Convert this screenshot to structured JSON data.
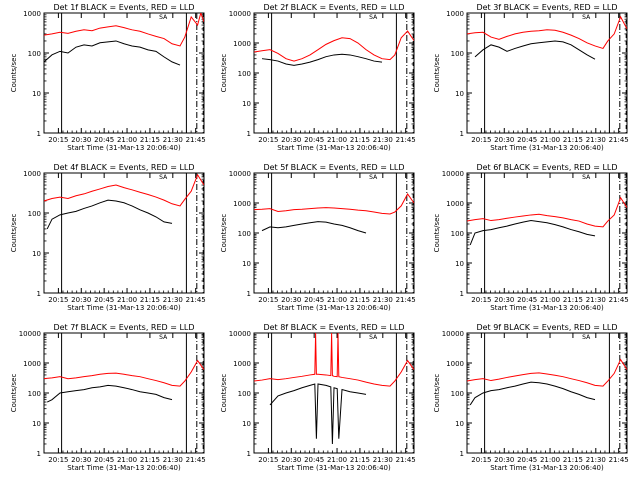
{
  "figure": {
    "background": "#ffffff",
    "axis_color": "#000000"
  },
  "colors": {
    "events": "#000000",
    "lld": "#ff0000"
  },
  "chart_data": [
    {
      "type": "line",
      "title": "Det 1f BLACK = Events, RED = LLD",
      "xlabel": "Start Time (31-Mar-13 20:06:40)",
      "ylabel": "Counts/sec",
      "yscale": "log",
      "ylim": [
        1,
        1000
      ],
      "ytick_labels": [
        "1",
        "10",
        "100",
        "1000"
      ],
      "xtick_labels": [
        "20:15",
        "20:30",
        "20:45",
        "21:00",
        "21:15",
        "21:30",
        "21:45"
      ],
      "marker_label": "SA",
      "series": [
        {
          "name": "Events",
          "x": [
            0,
            0.05,
            0.1,
            0.15,
            0.2,
            0.25,
            0.3,
            0.35,
            0.4,
            0.45,
            0.5,
            0.55,
            0.6,
            0.65,
            0.7,
            0.75,
            0.8,
            0.85
          ],
          "y": [
            60,
            90,
            110,
            100,
            140,
            160,
            150,
            180,
            190,
            200,
            170,
            150,
            140,
            120,
            110,
            80,
            60,
            50
          ]
        },
        {
          "name": "LLD",
          "x": [
            0,
            0.05,
            0.1,
            0.15,
            0.2,
            0.25,
            0.3,
            0.35,
            0.4,
            0.45,
            0.5,
            0.55,
            0.6,
            0.65,
            0.7,
            0.75,
            0.8,
            0.85,
            0.88,
            0.92,
            0.96,
            0.98,
            1.0
          ],
          "y": [
            280,
            300,
            330,
            310,
            350,
            380,
            360,
            420,
            450,
            480,
            430,
            380,
            350,
            300,
            260,
            230,
            170,
            150,
            250,
            800,
            500,
            1000,
            600
          ]
        }
      ]
    },
    {
      "type": "line",
      "title": "Det 2f BLACK = Events, RED = LLD",
      "xlabel": "Start Time (31-Mar-13 20:06:40)",
      "ylabel": "Counts/sec",
      "yscale": "log",
      "ylim": [
        1,
        10000
      ],
      "ytick_labels": [
        "1",
        "10",
        "100",
        "1000",
        "10000"
      ],
      "xtick_labels": [
        "20:15",
        "20:30",
        "20:45",
        "21:00",
        "21:15",
        "21:30",
        "21:45"
      ],
      "marker_label": "SA",
      "series": [
        {
          "name": "Events",
          "x": [
            0.05,
            0.1,
            0.15,
            0.2,
            0.25,
            0.3,
            0.35,
            0.4,
            0.45,
            0.5,
            0.55,
            0.6,
            0.65,
            0.7,
            0.75,
            0.8
          ],
          "y": [
            300,
            280,
            250,
            200,
            180,
            200,
            230,
            280,
            350,
            400,
            420,
            400,
            350,
            300,
            250,
            230
          ]
        },
        {
          "name": "LLD",
          "x": [
            0,
            0.05,
            0.1,
            0.15,
            0.2,
            0.25,
            0.3,
            0.35,
            0.4,
            0.45,
            0.5,
            0.55,
            0.6,
            0.65,
            0.7,
            0.75,
            0.8,
            0.85,
            0.88,
            0.92,
            0.96,
            1.0
          ],
          "y": [
            500,
            550,
            600,
            450,
            300,
            250,
            300,
            400,
            600,
            900,
            1200,
            1500,
            1400,
            1000,
            600,
            400,
            300,
            280,
            400,
            1500,
            2500,
            1200
          ]
        }
      ]
    },
    {
      "type": "line",
      "title": "Det 3f BLACK = Events, RED = LLD",
      "xlabel": "Start Time (31-Mar-13 20:06:40)",
      "ylabel": "Counts/sec",
      "yscale": "log",
      "ylim": [
        1,
        1000
      ],
      "ytick_labels": [
        "1",
        "10",
        "100",
        "1000"
      ],
      "xtick_labels": [
        "20:15",
        "20:30",
        "20:45",
        "21:00",
        "21:15",
        "21:30",
        "21:45"
      ],
      "marker_label": "SA",
      "series": [
        {
          "name": "Events",
          "x": [
            0.05,
            0.1,
            0.15,
            0.2,
            0.25,
            0.3,
            0.35,
            0.4,
            0.45,
            0.5,
            0.55,
            0.6,
            0.65,
            0.7,
            0.75,
            0.8
          ],
          "y": [
            80,
            120,
            160,
            140,
            110,
            130,
            150,
            170,
            180,
            190,
            200,
            190,
            160,
            120,
            90,
            70
          ]
        },
        {
          "name": "LLD",
          "x": [
            0,
            0.05,
            0.1,
            0.15,
            0.2,
            0.25,
            0.3,
            0.35,
            0.4,
            0.45,
            0.5,
            0.55,
            0.6,
            0.65,
            0.7,
            0.75,
            0.8,
            0.85,
            0.88,
            0.92,
            0.96,
            1.0
          ],
          "y": [
            300,
            320,
            330,
            250,
            220,
            260,
            300,
            330,
            350,
            360,
            380,
            370,
            330,
            280,
            230,
            180,
            150,
            130,
            200,
            300,
            800,
            400
          ]
        }
      ]
    },
    {
      "type": "line",
      "title": "Det 4f BLACK = Events, RED = LLD",
      "xlabel": "Start Time (31-Mar-13 20:06:40)",
      "ylabel": "Counts/sec",
      "yscale": "log",
      "ylim": [
        1,
        1000
      ],
      "ytick_labels": [
        "1",
        "10",
        "100",
        "1000"
      ],
      "xtick_labels": [
        "20:15",
        "20:30",
        "20:45",
        "21:00",
        "21:15",
        "21:30",
        "21:45"
      ],
      "marker_label": "SA",
      "series": [
        {
          "name": "Events",
          "x": [
            0.02,
            0.05,
            0.1,
            0.15,
            0.2,
            0.25,
            0.3,
            0.35,
            0.4,
            0.45,
            0.5,
            0.55,
            0.6,
            0.65,
            0.7,
            0.75,
            0.8
          ],
          "y": [
            40,
            70,
            90,
            100,
            110,
            130,
            150,
            180,
            210,
            200,
            180,
            150,
            120,
            100,
            80,
            60,
            55
          ]
        },
        {
          "name": "LLD",
          "x": [
            0,
            0.05,
            0.1,
            0.15,
            0.2,
            0.25,
            0.3,
            0.35,
            0.4,
            0.45,
            0.5,
            0.55,
            0.6,
            0.65,
            0.7,
            0.75,
            0.8,
            0.85,
            0.88,
            0.92,
            0.96,
            1.0
          ],
          "y": [
            200,
            230,
            250,
            230,
            270,
            300,
            350,
            400,
            460,
            500,
            430,
            380,
            330,
            290,
            250,
            210,
            170,
            150,
            220,
            350,
            900,
            500
          ]
        }
      ]
    },
    {
      "type": "line",
      "title": "Det 5f BLACK = Events, RED = LLD",
      "xlabel": "Start Time (31-Mar-13 20:06:40)",
      "ylabel": "Counts/sec",
      "yscale": "log",
      "ylim": [
        1,
        10000
      ],
      "ytick_labels": [
        "1",
        "10",
        "100",
        "1000",
        "10000"
      ],
      "xtick_labels": [
        "20:15",
        "20:30",
        "20:45",
        "21:00",
        "21:15",
        "21:30",
        "21:45"
      ],
      "marker_label": "SA",
      "series": [
        {
          "name": "Events",
          "x": [
            0.05,
            0.1,
            0.15,
            0.2,
            0.25,
            0.3,
            0.35,
            0.4,
            0.45,
            0.5,
            0.55,
            0.6,
            0.65,
            0.7
          ],
          "y": [
            120,
            160,
            150,
            160,
            180,
            200,
            220,
            240,
            230,
            200,
            180,
            150,
            120,
            100
          ]
        },
        {
          "name": "LLD",
          "x": [
            0,
            0.05,
            0.1,
            0.15,
            0.2,
            0.25,
            0.3,
            0.35,
            0.4,
            0.45,
            0.5,
            0.55,
            0.6,
            0.65,
            0.7,
            0.75,
            0.8,
            0.85,
            0.88,
            0.92,
            0.96,
            1.0
          ],
          "y": [
            600,
            620,
            650,
            520,
            550,
            600,
            620,
            650,
            680,
            700,
            680,
            650,
            620,
            580,
            550,
            500,
            450,
            430,
            500,
            800,
            2000,
            1000
          ]
        }
      ]
    },
    {
      "type": "line",
      "title": "Det 6f BLACK = Events, RED = LLD",
      "xlabel": "Start Time (31-Mar-13 20:06:40)",
      "ylabel": "Counts/sec",
      "yscale": "log",
      "ylim": [
        1,
        10000
      ],
      "ytick_labels": [
        "1",
        "10",
        "100",
        "1000",
        "10000"
      ],
      "xtick_labels": [
        "20:15",
        "20:30",
        "20:45",
        "21:00",
        "21:15",
        "21:30",
        "21:45"
      ],
      "marker_label": "SA",
      "series": [
        {
          "name": "Events",
          "x": [
            0.02,
            0.05,
            0.1,
            0.15,
            0.2,
            0.25,
            0.3,
            0.35,
            0.4,
            0.45,
            0.5,
            0.55,
            0.6,
            0.65,
            0.7,
            0.75,
            0.8
          ],
          "y": [
            40,
            100,
            120,
            130,
            150,
            170,
            200,
            230,
            260,
            240,
            220,
            190,
            160,
            130,
            110,
            90,
            80
          ]
        },
        {
          "name": "LLD",
          "x": [
            0,
            0.05,
            0.1,
            0.15,
            0.2,
            0.25,
            0.3,
            0.35,
            0.4,
            0.45,
            0.5,
            0.55,
            0.6,
            0.65,
            0.7,
            0.75,
            0.8,
            0.85,
            0.88,
            0.92,
            0.96,
            1.0
          ],
          "y": [
            250,
            280,
            300,
            260,
            280,
            310,
            340,
            370,
            400,
            420,
            380,
            350,
            320,
            280,
            250,
            200,
            170,
            160,
            250,
            400,
            1500,
            700
          ]
        }
      ]
    },
    {
      "type": "line",
      "title": "Det 7f BLACK = Events, RED = LLD",
      "xlabel": "Start Time (31-Mar-13 20:06:40)",
      "ylabel": "Counts/sec",
      "yscale": "log",
      "ylim": [
        1,
        10000
      ],
      "ytick_labels": [
        "1",
        "10",
        "100",
        "1000",
        "10000"
      ],
      "xtick_labels": [
        "20:15",
        "20:30",
        "20:45",
        "21:00",
        "21:15",
        "21:30",
        "21:45"
      ],
      "marker_label": "SA",
      "series": [
        {
          "name": "Events",
          "x": [
            0.02,
            0.05,
            0.1,
            0.15,
            0.2,
            0.25,
            0.3,
            0.35,
            0.4,
            0.45,
            0.5,
            0.55,
            0.6,
            0.65,
            0.7,
            0.75,
            0.8
          ],
          "y": [
            50,
            60,
            100,
            110,
            120,
            130,
            150,
            160,
            180,
            170,
            150,
            130,
            110,
            100,
            90,
            70,
            60
          ]
        },
        {
          "name": "LLD",
          "x": [
            0,
            0.05,
            0.1,
            0.15,
            0.2,
            0.25,
            0.3,
            0.35,
            0.4,
            0.45,
            0.5,
            0.55,
            0.6,
            0.65,
            0.7,
            0.75,
            0.8,
            0.85,
            0.88,
            0.92,
            0.96,
            1.0
          ],
          "y": [
            300,
            320,
            350,
            300,
            320,
            350,
            380,
            420,
            450,
            460,
            420,
            380,
            350,
            300,
            260,
            220,
            180,
            170,
            250,
            500,
            1200,
            600
          ]
        }
      ]
    },
    {
      "type": "line",
      "title": "Det 8f BLACK = Events, RED = LLD",
      "xlabel": "Start Time (31-Mar-13 20:06:40)",
      "ylabel": "Counts/sec",
      "yscale": "log",
      "ylim": [
        1,
        10000
      ],
      "ytick_labels": [
        "1",
        "10",
        "100",
        "1000",
        "10000"
      ],
      "xtick_labels": [
        "20:15",
        "20:30",
        "20:45",
        "21:00",
        "21:15",
        "21:30",
        "21:45"
      ],
      "marker_label": "SA",
      "series": [
        {
          "name": "Events",
          "x": [
            0.1,
            0.15,
            0.2,
            0.25,
            0.3,
            0.35,
            0.38,
            0.39,
            0.4,
            0.45,
            0.48,
            0.49,
            0.5,
            0.52,
            0.53,
            0.55,
            0.6,
            0.65,
            0.7
          ],
          "y": [
            40,
            80,
            100,
            120,
            150,
            180,
            200,
            3,
            200,
            180,
            160,
            2,
            150,
            140,
            3,
            130,
            110,
            100,
            90
          ]
        },
        {
          "name": "LLD",
          "x": [
            0,
            0.05,
            0.1,
            0.15,
            0.2,
            0.25,
            0.3,
            0.35,
            0.38,
            0.385,
            0.39,
            0.4,
            0.45,
            0.48,
            0.485,
            0.49,
            0.5,
            0.52,
            0.525,
            0.53,
            0.55,
            0.6,
            0.65,
            0.7,
            0.75,
            0.8,
            0.85,
            0.88,
            0.92,
            0.96,
            1.0
          ],
          "y": [
            250,
            270,
            300,
            280,
            300,
            330,
            360,
            400,
            420,
            10000,
            420,
            420,
            400,
            380,
            10000,
            380,
            360,
            350,
            10000,
            350,
            330,
            300,
            270,
            230,
            200,
            180,
            170,
            250,
            500,
            1200,
            600
          ]
        }
      ]
    },
    {
      "type": "line",
      "title": "Det 9f BLACK = Events, RED = LLD",
      "xlabel": "Start Time (31-Mar-13 20:06:40)",
      "ylabel": "Counts/sec",
      "yscale": "log",
      "ylim": [
        1,
        10000
      ],
      "ytick_labels": [
        "1",
        "10",
        "100",
        "1000",
        "10000"
      ],
      "xtick_labels": [
        "20:15",
        "20:30",
        "20:45",
        "21:00",
        "21:15",
        "21:30",
        "21:45"
      ],
      "marker_label": "SA",
      "series": [
        {
          "name": "Events",
          "x": [
            0.02,
            0.05,
            0.1,
            0.15,
            0.2,
            0.25,
            0.3,
            0.35,
            0.4,
            0.45,
            0.5,
            0.55,
            0.6,
            0.65,
            0.7,
            0.75,
            0.8
          ],
          "y": [
            40,
            70,
            100,
            120,
            130,
            150,
            170,
            200,
            230,
            220,
            200,
            170,
            140,
            110,
            90,
            70,
            60
          ]
        },
        {
          "name": "LLD",
          "x": [
            0,
            0.05,
            0.1,
            0.15,
            0.2,
            0.25,
            0.3,
            0.35,
            0.4,
            0.45,
            0.5,
            0.55,
            0.6,
            0.65,
            0.7,
            0.75,
            0.8,
            0.85,
            0.88,
            0.92,
            0.96,
            1.0
          ],
          "y": [
            250,
            280,
            300,
            260,
            290,
            330,
            370,
            410,
            450,
            470,
            430,
            390,
            350,
            300,
            260,
            220,
            180,
            170,
            250,
            450,
            1300,
            600
          ]
        }
      ]
    }
  ]
}
